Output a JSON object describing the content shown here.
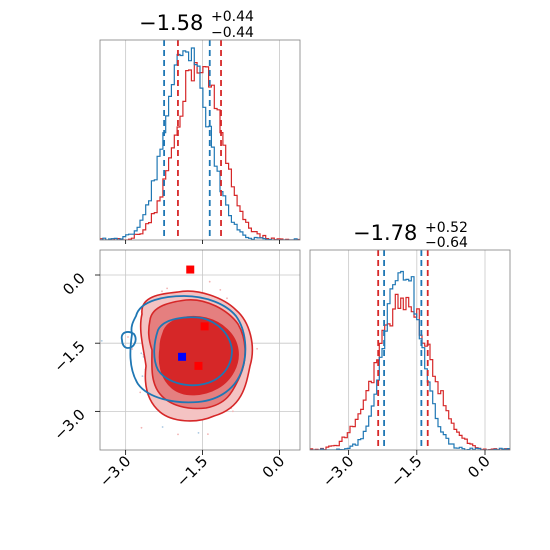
{
  "chart_data": {
    "type": "corner",
    "colors": {
      "red": "#d62728",
      "blue": "#1f77b4",
      "red_marker": "#ff0000",
      "blue_marker": "#0000ff"
    },
    "parameters": [
      {
        "title": {
          "median": "−1.58",
          "plus": "+0.44",
          "minus": "−0.44"
        },
        "xlim": [
          -3.5,
          0.4
        ],
        "ticks": [
          -3.0,
          -1.5,
          0.0
        ],
        "red_lines": [
          -1.98,
          -1.14
        ],
        "blue_lines": [
          -2.25,
          -1.36
        ]
      },
      {
        "title": {
          "median": "−1.78",
          "plus": "+0.52",
          "minus": "−0.64"
        },
        "xlim": [
          -3.85,
          0.55
        ],
        "ticks": [
          -3.0,
          -1.5,
          0.0
        ],
        "tick_labels": [
          "−3.0",
          "−1.5",
          "0.0"
        ],
        "red_lines": [
          -2.35,
          -1.26
        ],
        "blue_lines": [
          -2.22,
          -1.4
        ]
      }
    ],
    "scatter_panel": {
      "x_ticks": [
        -3.0,
        -1.5,
        0.0
      ],
      "x_tick_labels": [
        "−3.0",
        "−1.5",
        "0.0"
      ],
      "y_ticks": [
        0.0,
        -1.5,
        -3.0
      ],
      "y_tick_labels": [
        "0.0",
        "−1.5",
        "−3.0"
      ],
      "red_squares": [
        [
          -1.74,
          0.12
        ],
        [
          -1.46,
          -1.13
        ],
        [
          -1.58,
          -2.0
        ]
      ],
      "blue_squares": [
        [
          -1.9,
          -1.8
        ]
      ]
    }
  }
}
